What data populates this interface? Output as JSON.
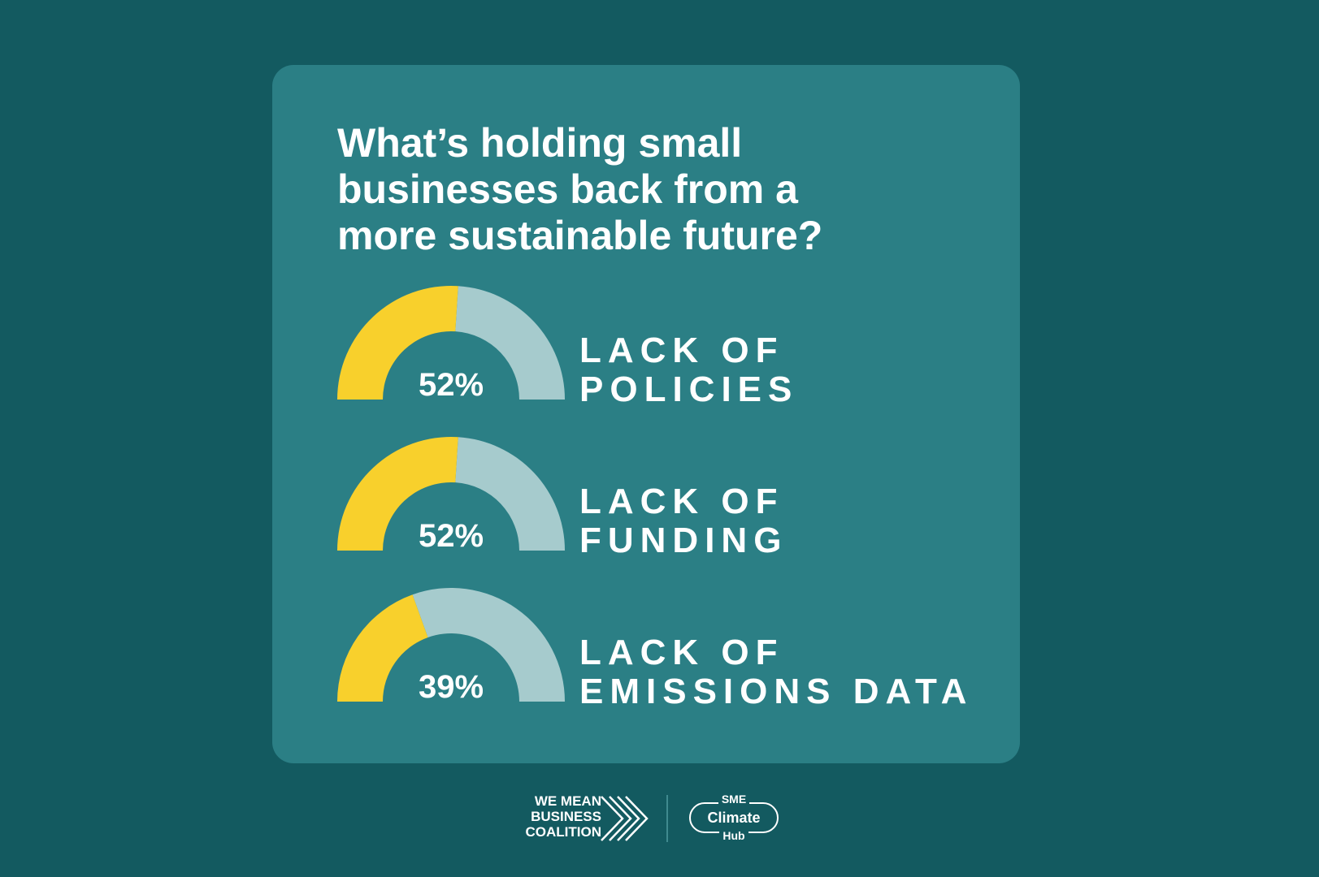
{
  "title_lines": [
    "What’s holding small",
    "businesses back from a",
    "more sustainable future?"
  ],
  "chart_data": {
    "type": "gauge",
    "categories": [
      "LACK OF POLICIES",
      "LACK OF FUNDING",
      "LACK OF EMISSIONS DATA"
    ],
    "values": [
      52,
      52,
      39
    ],
    "max": 100,
    "items": [
      {
        "label_lines": [
          "LACK OF",
          "POLICIES"
        ],
        "value": 52,
        "display": "52%"
      },
      {
        "label_lines": [
          "LACK OF",
          "FUNDING"
        ],
        "value": 52,
        "display": "52%"
      },
      {
        "label_lines": [
          "LACK OF",
          "EMISSIONS DATA"
        ],
        "value": 39,
        "display": "39%"
      }
    ],
    "colors": {
      "filled": "#f8d02c",
      "remaining": "#a6cbcd"
    }
  },
  "colors": {
    "background": "#135a60",
    "card": "#2b7f85",
    "text": "#ffffff"
  },
  "footer": {
    "wmb_lines": [
      "WE MEAN",
      "BUSINESS",
      "COALITION"
    ],
    "wmb_icon": "chevron-arrows-icon",
    "hub_top": "SME",
    "hub_main": "Climate",
    "hub_bottom": "Hub"
  }
}
